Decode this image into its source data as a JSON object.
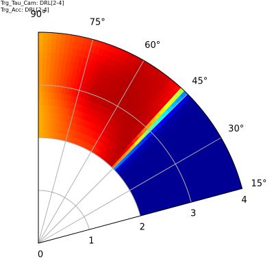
{
  "header": {
    "lines": [
      "Trg_Tau_Cam: DRL[2-4]",
      "Trg_Acc: DRL[2-4]"
    ]
  },
  "colors": {
    "grid": "#b0b0b0",
    "edge": "#000000",
    "colormap": "jet",
    "low": "#00008f",
    "high": "#800000"
  },
  "chart_data": {
    "type": "heatmap",
    "projection": "polar-sector",
    "title": "",
    "theta_range_deg": [
      15,
      90
    ],
    "r_range": [
      0,
      4
    ],
    "data_r_range": [
      2,
      4
    ],
    "theta_ticks": [
      "15°",
      "30°",
      "45°",
      "60°",
      "75°",
      "90°"
    ],
    "theta_tick_values": [
      15,
      30,
      45,
      60,
      75,
      90
    ],
    "r_ticks": [
      "0",
      "1",
      "2",
      "3",
      "4"
    ],
    "r_tick_values": [
      0,
      1,
      2,
      3,
      4
    ],
    "grid": true,
    "colorbar": false,
    "value_range": [
      0,
      1
    ],
    "theta_samples_deg": [
      15,
      30,
      40,
      44,
      46,
      48,
      52,
      60,
      70,
      80,
      90
    ],
    "r_samples": [
      2.0,
      2.5,
      3.0,
      3.5,
      4.0
    ],
    "values": [
      [
        0.02,
        0.02,
        0.02,
        0.02,
        0.02
      ],
      [
        0.02,
        0.02,
        0.02,
        0.02,
        0.02
      ],
      [
        0.02,
        0.02,
        0.02,
        0.02,
        0.02
      ],
      [
        0.1,
        0.07,
        0.05,
        0.04,
        0.03
      ],
      [
        0.95,
        0.85,
        0.58,
        0.42,
        0.3
      ],
      [
        0.93,
        0.95,
        0.93,
        0.9,
        0.86
      ],
      [
        0.9,
        0.94,
        0.95,
        0.93,
        0.92
      ],
      [
        0.82,
        0.9,
        0.95,
        0.95,
        0.93
      ],
      [
        0.8,
        0.86,
        0.94,
        0.92,
        0.86
      ],
      [
        0.76,
        0.78,
        0.83,
        0.82,
        0.8
      ],
      [
        0.7,
        0.7,
        0.72,
        0.72,
        0.7
      ]
    ]
  }
}
